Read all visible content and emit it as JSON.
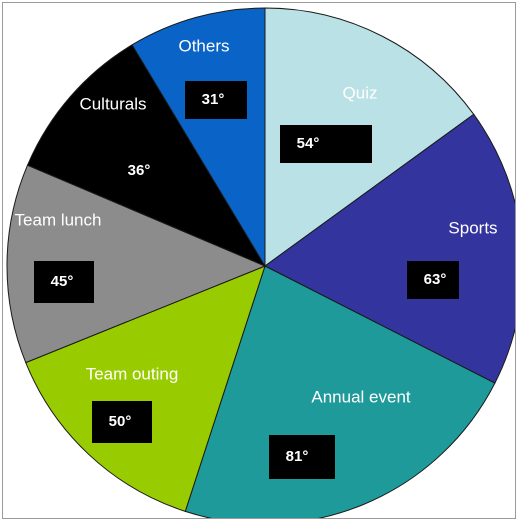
{
  "chart_data": {
    "type": "pie",
    "title": "",
    "unit": "°",
    "slices": [
      {
        "name": "Quiz",
        "value": 54,
        "value_label": "54°",
        "color": "#b9e1e6"
      },
      {
        "name": "Sports",
        "value": 63,
        "value_label": "63°",
        "color": "#34349e"
      },
      {
        "name": "Annual event",
        "value": 81,
        "value_label": "81°",
        "color": "#1e9a9a"
      },
      {
        "name": "Team outing",
        "value": 50,
        "value_label": "50°",
        "color": "#99cc00"
      },
      {
        "name": "Team lunch",
        "value": 45,
        "value_label": "45°",
        "color": "#8c8c8c"
      },
      {
        "name": "Culturals",
        "value": 36,
        "value_label": "36°",
        "color": "#000000"
      },
      {
        "name": "Others",
        "value": 31,
        "value_label": "31°",
        "color": "#0a64c8"
      }
    ],
    "legend": "none",
    "start": "top, clockwise"
  }
}
